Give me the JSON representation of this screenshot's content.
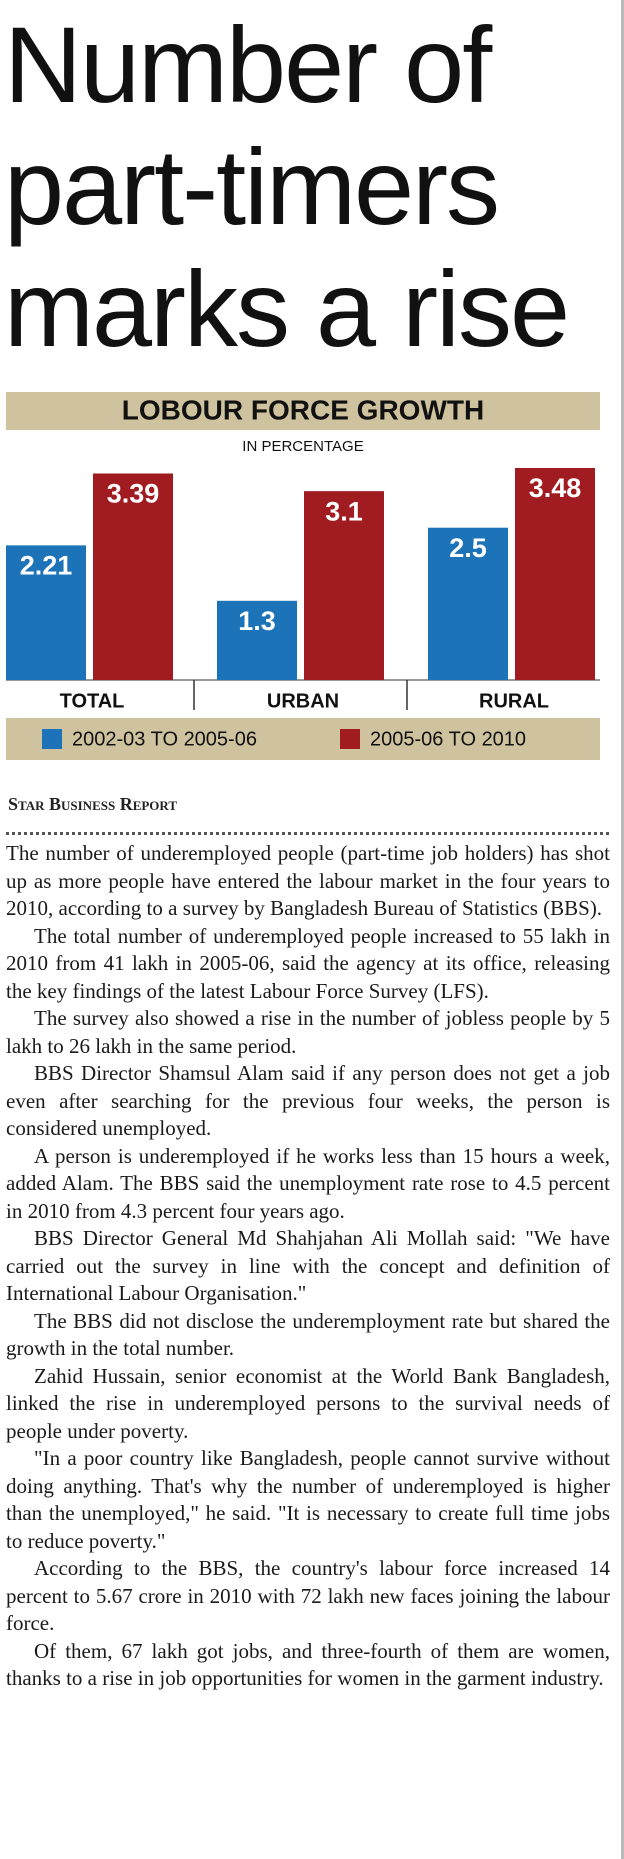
{
  "headline": [
    "Number of",
    "part-timers",
    "marks a rise"
  ],
  "chart_data": {
    "type": "bar",
    "title": "LOBOUR FORCE GROWTH",
    "subtitle": "IN PERCENTAGE",
    "categories": [
      "TOTAL",
      "URBAN",
      "RURAL"
    ],
    "series": [
      {
        "name": "2002-03 TO 2005-06",
        "color": "#1d73b8",
        "values": [
          2.21,
          1.3,
          2.5
        ]
      },
      {
        "name": "2005-06 TO 2010",
        "color": "#a01c20",
        "values": [
          3.39,
          3.1,
          3.48
        ]
      }
    ],
    "legend": "bottom"
  },
  "byline": "Star Business Report",
  "paragraphs": [
    "The number of underemployed people (part-time job holders) has shot up as more people have entered the labour market in the four years to 2010, according to a survey by Bangladesh Bureau of Statistics (BBS).",
    "The total number of underemployed people increased to 55 lakh in 2010 from 41 lakh in 2005-06, said the agency at its office, releasing the key findings of the latest Labour Force Survey (LFS).",
    "The survey also showed a rise in the number of jobless people by 5 lakh to 26 lakh in the same period.",
    "BBS Director Shamsul Alam said if any person does not get a job even after searching for the previous four weeks, the person is considered unemployed.",
    "A person is underemployed if he works less than 15 hours a week, added Alam. The BBS said the unemployment rate rose to 4.5 percent in 2010 from 4.3 percent four years ago.",
    "BBS Director General Md Shahjahan Ali Mollah said: \"We have carried out the survey in line with the concept and definition of International Labour Organisation.\"",
    "The BBS did not disclose the underemployment rate but shared the growth in the total number.",
    "Zahid Hussain, senior economist at the World Bank Bangladesh, linked the rise in underemployed persons to the survival needs of people under poverty.",
    "\"In a poor country like Bangladesh, people cannot survive without doing anything. That's why the number of underemployed is higher than the unemployed,\" he said. \"It is necessary to create full time jobs to reduce poverty.\"",
    "According to the BBS, the country's labour force increased 14 percent to 5.67 crore in 2010 with 72 lakh new faces joining the labour force.",
    "Of them, 67 lakh got jobs, and three-fourth of them are women, thanks to a rise in job opportunities for women in the garment industry."
  ]
}
